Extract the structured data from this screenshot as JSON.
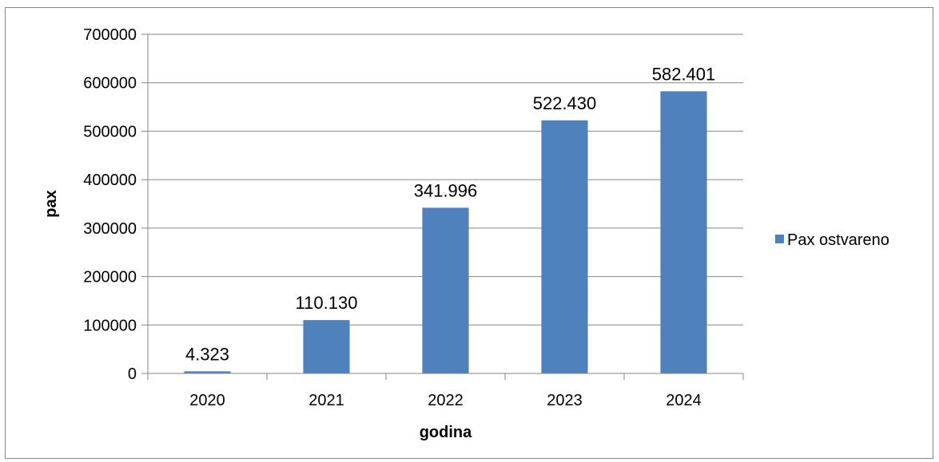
{
  "chart_data": {
    "type": "bar",
    "categories": [
      "2020",
      "2021",
      "2022",
      "2023",
      "2024"
    ],
    "series": [
      {
        "name": "Pax ostvareno",
        "values": [
          4323,
          110130,
          341996,
          522430,
          582401
        ],
        "data_labels": [
          "4.323",
          "110.130",
          "341.996",
          "522.430",
          "582.401"
        ],
        "color": "#4F81BD"
      }
    ],
    "xlabel": "godina",
    "ylabel": "pax",
    "ylim": [
      0,
      700000
    ],
    "y_ticks": [
      "0",
      "100000",
      "200000",
      "300000",
      "400000",
      "500000",
      "600000",
      "700000"
    ],
    "grid": true,
    "legend_position": "right"
  }
}
